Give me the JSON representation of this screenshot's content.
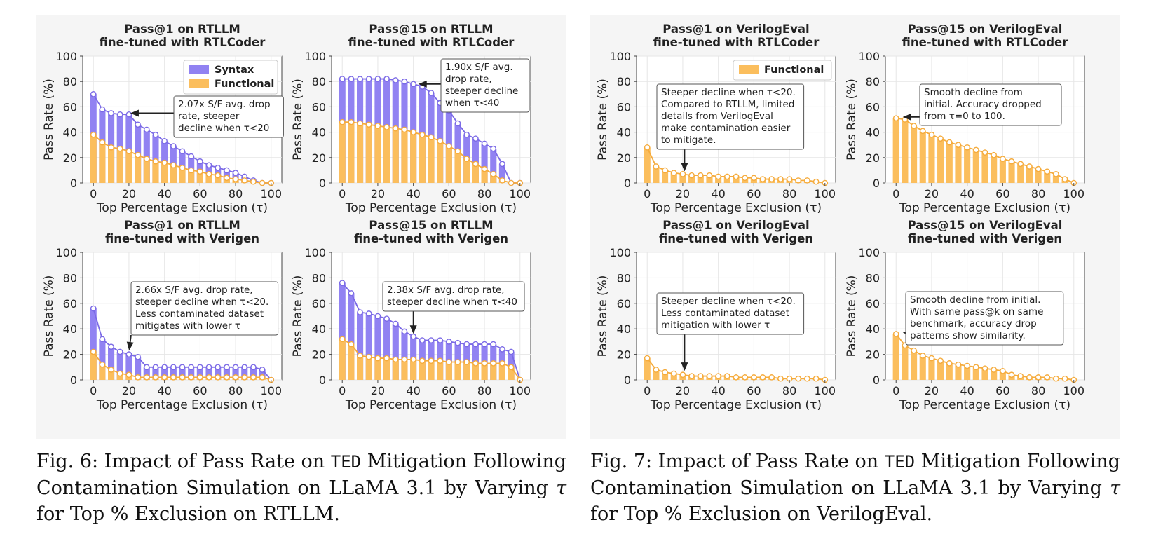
{
  "colors": {
    "syntax": "#9182f2",
    "syntax_line": "#7b6ae6",
    "functional": "#fbbe5d",
    "functional_line": "#f5ab3c",
    "grid": "#e6e6e6",
    "panel": "#f5f5f5"
  },
  "captions": [
    {
      "prefix": "Fig. 6: Impact of Pass Rate on ",
      "code": "TED",
      "middle": " Mitigation Following Contamination Simulation on LLaMA 3.1 by Varying ",
      "symbol": "τ",
      "suffix": " for Top % Exclusion on RTLLM."
    },
    {
      "prefix": "Fig. 7: Impact of Pass Rate on ",
      "code": "TED",
      "middle": " Mitigation Following Contamination Simulation on LLaMA 3.1 by Varying ",
      "symbol": "τ",
      "suffix": " for Top % Exclusion on VerilogEval."
    }
  ],
  "chart_data": [
    {
      "type": "bar",
      "figure": 0,
      "title": [
        "Pass@1 on RTLLM",
        "fine-tuned with RTLCoder"
      ],
      "xlabel": "Top Percentage Exclusion (τ)",
      "ylabel": "Pass Rate (%)",
      "xlim": [
        0,
        100
      ],
      "ylim": [
        0,
        100
      ],
      "xticks": [
        0,
        20,
        40,
        60,
        80,
        100
      ],
      "yticks": [
        0,
        20,
        40,
        60,
        80,
        100
      ],
      "grid": true,
      "legend": {
        "position": "top-right",
        "entries": [
          "Syntax",
          "Functional"
        ]
      },
      "x": [
        0,
        5,
        10,
        15,
        20,
        25,
        30,
        35,
        40,
        45,
        50,
        55,
        60,
        65,
        70,
        75,
        80,
        85,
        90,
        95,
        100
      ],
      "series": [
        {
          "name": "Syntax",
          "values": [
            70,
            58,
            55,
            54,
            54,
            46,
            42,
            38,
            33,
            29,
            25,
            21,
            17,
            14,
            12,
            10,
            8,
            5,
            2,
            0,
            0
          ]
        },
        {
          "name": "Functional",
          "values": [
            38,
            32,
            28,
            27,
            25,
            22,
            19,
            17,
            16,
            14,
            12,
            10,
            9,
            7,
            6,
            4,
            3,
            2,
            1,
            0,
            0
          ]
        }
      ],
      "annotation": {
        "lines": [
          "2.07x S/F avg. drop",
          "rate, steeper",
          "decline when τ<20"
        ],
        "target": [
          20,
          55
        ]
      }
    },
    {
      "type": "bar",
      "figure": 0,
      "title": [
        "Pass@15 on RTLLM",
        "fine-tuned with RTLCoder"
      ],
      "xlabel": "Top Percentage Exclusion (τ)",
      "ylabel": "Pass Rate (%)",
      "xlim": [
        0,
        100
      ],
      "ylim": [
        0,
        100
      ],
      "xticks": [
        0,
        20,
        40,
        60,
        80,
        100
      ],
      "yticks": [
        0,
        20,
        40,
        60,
        80,
        100
      ],
      "grid": true,
      "x": [
        0,
        5,
        10,
        15,
        20,
        25,
        30,
        35,
        40,
        45,
        50,
        55,
        60,
        65,
        70,
        75,
        80,
        85,
        90,
        95,
        100
      ],
      "series": [
        {
          "name": "Syntax",
          "values": [
            82,
            82,
            82,
            82,
            82,
            82,
            81,
            80,
            78,
            76,
            71,
            63,
            57,
            47,
            38,
            35,
            31,
            27,
            15,
            0,
            0
          ]
        },
        {
          "name": "Functional",
          "values": [
            48,
            48,
            47,
            46,
            45,
            44,
            43,
            42,
            40,
            38,
            36,
            33,
            29,
            25,
            19,
            15,
            11,
            7,
            2,
            0,
            0
          ]
        }
      ],
      "annotation": {
        "lines": [
          "1.90x S/F avg.",
          "drop rate,",
          "steeper decline",
          "when τ<40"
        ],
        "target": [
          42,
          78
        ]
      }
    },
    {
      "type": "bar",
      "figure": 0,
      "title": [
        "Pass@1 on RTLLM",
        "fine-tuned with Verigen"
      ],
      "xlabel": "Top Percentage Exclusion (τ)",
      "ylabel": "Pass Rate (%)",
      "xlim": [
        0,
        100
      ],
      "ylim": [
        0,
        100
      ],
      "xticks": [
        0,
        20,
        40,
        60,
        80,
        100
      ],
      "yticks": [
        0,
        20,
        40,
        60,
        80,
        100
      ],
      "grid": true,
      "x": [
        0,
        5,
        10,
        15,
        20,
        25,
        30,
        35,
        40,
        45,
        50,
        55,
        60,
        65,
        70,
        75,
        80,
        85,
        90,
        95,
        100
      ],
      "series": [
        {
          "name": "Syntax",
          "values": [
            56,
            32,
            26,
            22,
            20,
            18,
            10,
            10,
            10,
            10,
            10,
            10,
            10,
            10,
            10,
            10,
            10,
            10,
            10,
            8,
            0
          ]
        },
        {
          "name": "Functional",
          "values": [
            22,
            12,
            8,
            5,
            4,
            2,
            2,
            2,
            2,
            2,
            2,
            2,
            2,
            2,
            2,
            2,
            2,
            2,
            2,
            2,
            0
          ]
        }
      ],
      "annotation": {
        "lines": [
          "2.66x S/F avg. drop rate,",
          "steeper decline when τ<20.",
          "Less contaminated dataset",
          "mitigates with lower τ"
        ],
        "target": [
          20,
          22
        ]
      }
    },
    {
      "type": "bar",
      "figure": 0,
      "title": [
        "Pass@15 on RTLLM",
        "fine-tuned with Verigen"
      ],
      "xlabel": "Top Percentage Exclusion (τ)",
      "ylabel": "Pass Rate (%)",
      "xlim": [
        0,
        100
      ],
      "ylim": [
        0,
        100
      ],
      "xticks": [
        0,
        20,
        40,
        60,
        80,
        100
      ],
      "yticks": [
        0,
        20,
        40,
        60,
        80,
        100
      ],
      "grid": true,
      "x": [
        0,
        5,
        10,
        15,
        20,
        25,
        30,
        35,
        40,
        45,
        50,
        55,
        60,
        65,
        70,
        75,
        80,
        85,
        90,
        95,
        100
      ],
      "series": [
        {
          "name": "Syntax",
          "values": [
            76,
            68,
            53,
            52,
            50,
            48,
            44,
            38,
            34,
            31,
            31,
            31,
            30,
            29,
            28,
            28,
            28,
            28,
            24,
            22,
            0
          ]
        },
        {
          "name": "Functional",
          "values": [
            32,
            28,
            19,
            18,
            17,
            17,
            16,
            16,
            16,
            15,
            15,
            15,
            14,
            14,
            14,
            13,
            13,
            13,
            13,
            10,
            0
          ]
        }
      ],
      "annotation": {
        "lines": [
          "2.38x S/F avg. drop rate,",
          "steeper decline when τ<40"
        ],
        "target": [
          40,
          35
        ]
      }
    },
    {
      "type": "bar",
      "figure": 1,
      "title": [
        "Pass@1 on VerilogEval",
        "fine-tuned with RTLCoder"
      ],
      "xlabel": "Top Percentage Exclusion (τ)",
      "ylabel": "Pass Rate (%)",
      "xlim": [
        0,
        100
      ],
      "ylim": [
        0,
        100
      ],
      "xticks": [
        0,
        20,
        40,
        60,
        80,
        100
      ],
      "yticks": [
        0,
        20,
        40,
        60,
        80,
        100
      ],
      "grid": true,
      "legend": {
        "position": "top-right",
        "entries": [
          "Functional"
        ]
      },
      "x": [
        0,
        5,
        10,
        15,
        20,
        25,
        30,
        35,
        40,
        45,
        50,
        55,
        60,
        65,
        70,
        75,
        80,
        85,
        90,
        95,
        100
      ],
      "series": [
        {
          "name": "Functional",
          "values": [
            28,
            13,
            10,
            8,
            7,
            6,
            6,
            6,
            5,
            5,
            5,
            4,
            4,
            3,
            3,
            3,
            3,
            2,
            2,
            1,
            0
          ]
        }
      ],
      "annotation": {
        "lines": [
          "Steeper decline when τ<20.",
          "Compared to RTLLM, limited",
          "details from VerilogEval",
          "make contamination easier",
          "to mitigate."
        ],
        "target": [
          21,
          8
        ]
      }
    },
    {
      "type": "bar",
      "figure": 1,
      "title": [
        "Pass@15 on VerilogEval",
        "fine-tuned with RTLCoder"
      ],
      "xlabel": "Top Percentage Exclusion (τ)",
      "ylabel": "Pass Rate (%)",
      "xlim": [
        0,
        100
      ],
      "ylim": [
        0,
        100
      ],
      "xticks": [
        0,
        20,
        40,
        60,
        80,
        100
      ],
      "yticks": [
        0,
        20,
        40,
        60,
        80,
        100
      ],
      "grid": true,
      "x": [
        0,
        5,
        10,
        15,
        20,
        25,
        30,
        35,
        40,
        45,
        50,
        55,
        60,
        65,
        70,
        75,
        80,
        85,
        90,
        95,
        100
      ],
      "series": [
        {
          "name": "Functional",
          "values": [
            51,
            50,
            45,
            41,
            38,
            35,
            32,
            30,
            28,
            26,
            24,
            22,
            19,
            17,
            15,
            13,
            11,
            9,
            7,
            3,
            0
          ]
        }
      ],
      "annotation": {
        "lines": [
          "Smooth decline from",
          "initial. Accuracy dropped",
          "from τ=0 to 100."
        ],
        "target": [
          3,
          52
        ]
      }
    },
    {
      "type": "bar",
      "figure": 1,
      "title": [
        "Pass@1 on VerilogEval",
        "fine-tuned with Verigen"
      ],
      "xlabel": "Top Percentage Exclusion (τ)",
      "ylabel": "Pass Rate (%)",
      "xlim": [
        0,
        100
      ],
      "ylim": [
        0,
        100
      ],
      "xticks": [
        0,
        20,
        40,
        60,
        80,
        100
      ],
      "yticks": [
        0,
        20,
        40,
        60,
        80,
        100
      ],
      "grid": true,
      "x": [
        0,
        5,
        10,
        15,
        20,
        25,
        30,
        35,
        40,
        45,
        50,
        55,
        60,
        65,
        70,
        75,
        80,
        85,
        90,
        95,
        100
      ],
      "series": [
        {
          "name": "Functional",
          "values": [
            17,
            8,
            6,
            5,
            4,
            3,
            3,
            3,
            3,
            3,
            2,
            2,
            2,
            2,
            2,
            1,
            1,
            1,
            1,
            1,
            0
          ]
        }
      ],
      "annotation": {
        "lines": [
          "Steeper decline when τ<20.",
          "Less contaminated dataset",
          "mitigation with lower τ"
        ],
        "target": [
          21,
          6
        ]
      }
    },
    {
      "type": "bar",
      "figure": 1,
      "title": [
        "Pass@15 on VerilogEval",
        "fine-tuned with Verigen"
      ],
      "xlabel": "Top Percentage Exclusion (τ)",
      "ylabel": "Pass Rate (%)",
      "xlim": [
        0,
        100
      ],
      "ylim": [
        0,
        100
      ],
      "xticks": [
        0,
        20,
        40,
        60,
        80,
        100
      ],
      "yticks": [
        0,
        20,
        40,
        60,
        80,
        100
      ],
      "grid": true,
      "x": [
        0,
        5,
        10,
        15,
        20,
        25,
        30,
        35,
        40,
        45,
        50,
        55,
        60,
        65,
        70,
        75,
        80,
        85,
        90,
        95,
        100
      ],
      "series": [
        {
          "name": "Functional",
          "values": [
            36,
            27,
            23,
            19,
            17,
            15,
            13,
            12,
            11,
            10,
            9,
            8,
            7,
            4,
            3,
            2,
            2,
            2,
            1,
            1,
            0
          ]
        }
      ],
      "annotation": {
        "lines": [
          "Smooth decline from initial.",
          "With same pass@k on same",
          "benchmark, accuracy drop",
          "patterns show similarity."
        ],
        "target": [
          3,
          37
        ]
      }
    }
  ]
}
